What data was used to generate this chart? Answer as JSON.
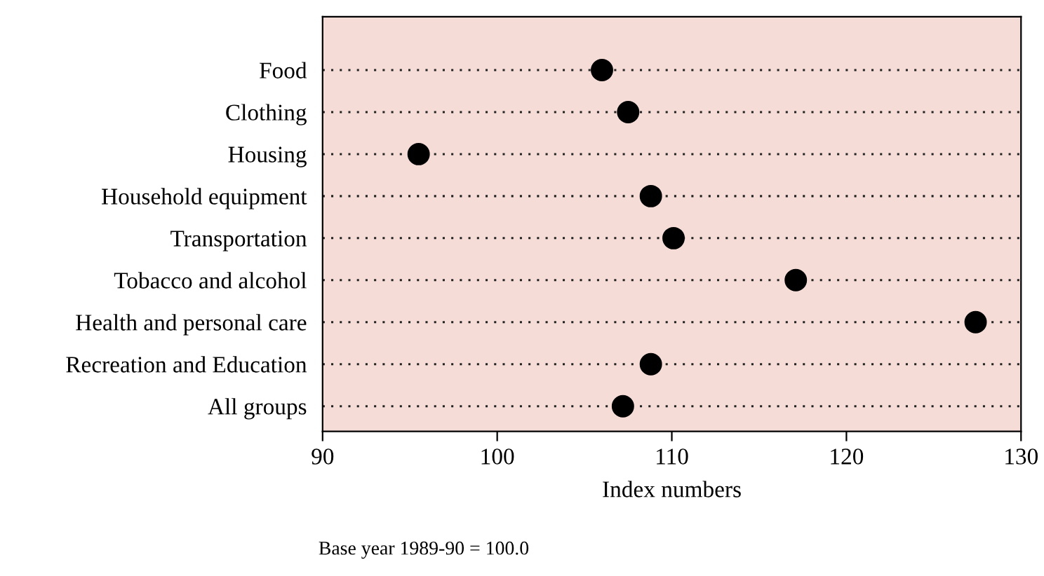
{
  "chart_data": {
    "type": "scatter",
    "orientation": "horizontal",
    "xlabel": "Index numbers",
    "categories": [
      "Food",
      "Clothing",
      "Housing",
      "Household equipment",
      "Transportation",
      "Tobacco and alcohol",
      "Health and personal care",
      "Recreation and Education",
      "All groups"
    ],
    "values": [
      106.0,
      107.5,
      95.5,
      108.8,
      110.1,
      117.1,
      127.4,
      108.8,
      107.2
    ],
    "color": "#000000",
    "marker": "circle",
    "grid": "y",
    "xlim": [
      90,
      130
    ],
    "xticks": [
      90,
      100,
      110,
      120,
      130
    ],
    "annotations": [
      "Base year 1989-90 = 100.0"
    ]
  }
}
